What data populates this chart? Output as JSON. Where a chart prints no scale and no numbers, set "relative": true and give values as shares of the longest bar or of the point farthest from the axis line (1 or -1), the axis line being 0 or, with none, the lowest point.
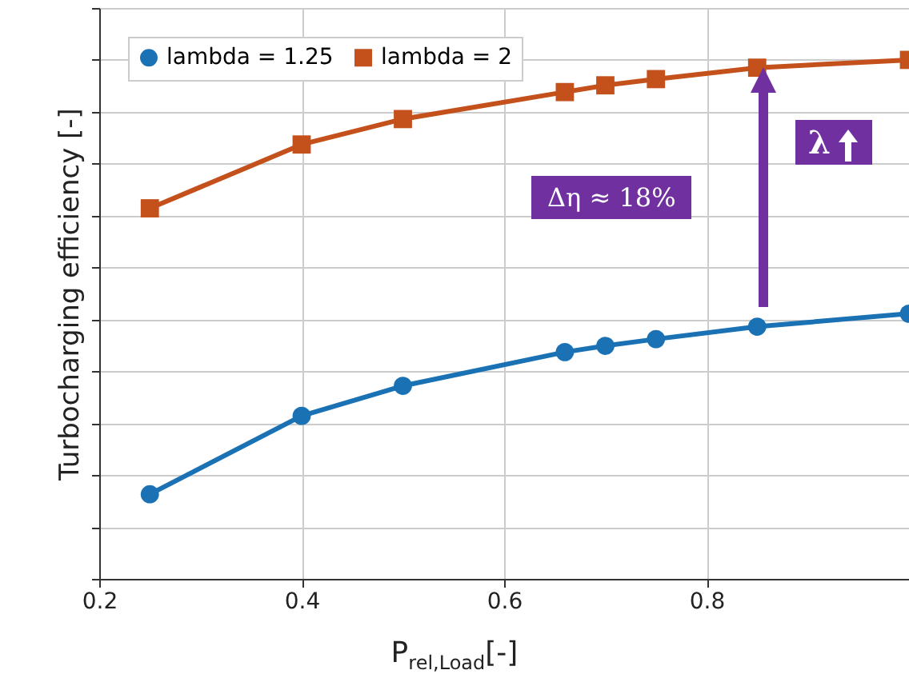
{
  "chart_data": {
    "type": "line",
    "xlabel": "P$_{rel,Load}$[-]",
    "ylabel": "Turbocharging efficiency [-]",
    "relative": true,
    "x": [
      0.25,
      0.4,
      0.5,
      0.66,
      0.7,
      0.75,
      0.85,
      1.0
    ],
    "xlim": [
      0.2,
      1.0
    ],
    "xticks": [
      0.2,
      0.4,
      0.6,
      0.8
    ],
    "series": [
      {
        "name": "lambda = 1.25",
        "color": "#1a72b5",
        "marker": "circle",
        "values": [
          0.163,
          0.314,
          0.372,
          0.437,
          0.449,
          0.462,
          0.486,
          0.511
        ]
      },
      {
        "name": "lambda = 2",
        "color": "#c4511c",
        "marker": "square",
        "values": [
          0.714,
          0.837,
          0.886,
          0.938,
          0.951,
          0.963,
          0.985,
          1
        ]
      }
    ],
    "annotations": [
      "Δη ≈ 18%",
      "λ"
    ],
    "grid": true,
    "legend": "top left",
    "line_style": "solid"
  }
}
